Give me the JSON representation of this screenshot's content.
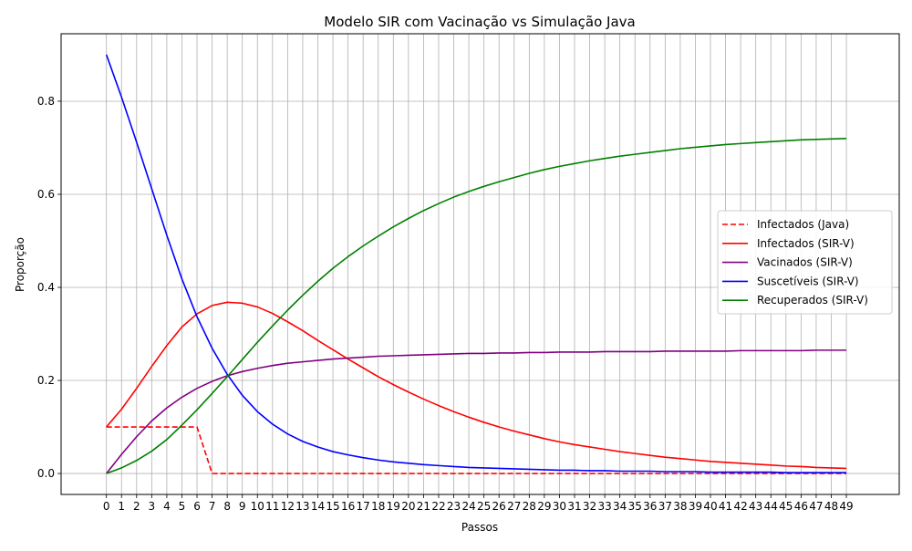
{
  "chart_data": {
    "type": "line",
    "title": "Modelo SIR com Vacinação vs Simulação Java",
    "xlabel": "Passos",
    "ylabel": "Proporção",
    "xlim": [
      -3,
      52.5
    ],
    "ylim": [
      -0.045,
      0.945
    ],
    "x_ticks": [
      0,
      1,
      2,
      3,
      4,
      5,
      6,
      7,
      8,
      9,
      10,
      11,
      12,
      13,
      14,
      15,
      16,
      17,
      18,
      19,
      20,
      21,
      22,
      23,
      24,
      25,
      26,
      27,
      28,
      29,
      30,
      31,
      32,
      33,
      34,
      35,
      36,
      37,
      38,
      39,
      40,
      41,
      42,
      43,
      44,
      45,
      46,
      47,
      48,
      49
    ],
    "y_ticks": [
      0.0,
      0.2,
      0.4,
      0.6,
      0.8
    ],
    "y_tick_labels": [
      "0.0",
      "0.2",
      "0.4",
      "0.6",
      "0.8"
    ],
    "grid": true,
    "legend_position": "center-right",
    "x": [
      0,
      1,
      2,
      3,
      4,
      5,
      6,
      7,
      8,
      9,
      10,
      11,
      12,
      13,
      14,
      15,
      16,
      17,
      18,
      19,
      20,
      21,
      22,
      23,
      24,
      25,
      26,
      27,
      28,
      29,
      30,
      31,
      32,
      33,
      34,
      35,
      36,
      37,
      38,
      39,
      40,
      41,
      42,
      43,
      44,
      45,
      46,
      47,
      48,
      49
    ],
    "series": [
      {
        "name": "Infectados (Java)",
        "color": "#ff0000",
        "dashed": true,
        "values": [
          0.1,
          0.1,
          0.1,
          0.1,
          0.1,
          0.1,
          0.1,
          0,
          0,
          0,
          0,
          0,
          0,
          0,
          0,
          0,
          0,
          0,
          0,
          0,
          0,
          0,
          0,
          0,
          0,
          0,
          0,
          0,
          0,
          0,
          0,
          0,
          0,
          0,
          0,
          0,
          0,
          0,
          0,
          0,
          0,
          0,
          0,
          0,
          0,
          0,
          0,
          0,
          0,
          0
        ]
      },
      {
        "name": "Infectados (SIR-V)",
        "color": "#ff0000",
        "dashed": false,
        "values": [
          0.1,
          0.138,
          0.183,
          0.23,
          0.275,
          0.315,
          0.343,
          0.361,
          0.368,
          0.366,
          0.358,
          0.344,
          0.326,
          0.307,
          0.286,
          0.266,
          0.246,
          0.227,
          0.208,
          0.191,
          0.175,
          0.16,
          0.146,
          0.133,
          0.121,
          0.11,
          0.1,
          0.091,
          0.083,
          0.075,
          0.068,
          0.062,
          0.057,
          0.052,
          0.047,
          0.043,
          0.039,
          0.035,
          0.032,
          0.029,
          0.026,
          0.024,
          0.022,
          0.02,
          0.018,
          0.016,
          0.015,
          0.013,
          0.012,
          0.011
        ]
      },
      {
        "name": "Vacinados (SIR-V)",
        "color": "#800080",
        "dashed": false,
        "values": [
          0,
          0.041,
          0.079,
          0.113,
          0.141,
          0.164,
          0.183,
          0.198,
          0.21,
          0.219,
          0.226,
          0.232,
          0.237,
          0.24,
          0.243,
          0.246,
          0.248,
          0.25,
          0.252,
          0.253,
          0.254,
          0.255,
          0.256,
          0.257,
          0.258,
          0.258,
          0.259,
          0.259,
          0.26,
          0.26,
          0.261,
          0.261,
          0.261,
          0.262,
          0.262,
          0.262,
          0.262,
          0.263,
          0.263,
          0.263,
          0.263,
          0.263,
          0.264,
          0.264,
          0.264,
          0.264,
          0.264,
          0.265,
          0.265,
          0.265
        ]
      },
      {
        "name": "Suscetíveis (SIR-V)",
        "color": "#0000ff",
        "dashed": false,
        "values": [
          0.9,
          0.809,
          0.712,
          0.612,
          0.512,
          0.418,
          0.337,
          0.269,
          0.213,
          0.168,
          0.133,
          0.106,
          0.085,
          0.069,
          0.057,
          0.047,
          0.04,
          0.034,
          0.029,
          0.025,
          0.022,
          0.019,
          0.017,
          0.015,
          0.013,
          0.012,
          0.011,
          0.01,
          0.009,
          0.008,
          0.007,
          0.007,
          0.006,
          0.006,
          0.005,
          0.005,
          0.005,
          0.004,
          0.004,
          0.004,
          0.003,
          0.003,
          0.003,
          0.003,
          0.003,
          0.002,
          0.002,
          0.002,
          0.002,
          0.002
        ]
      },
      {
        "name": "Recuperados (SIR-V)",
        "color": "#008000",
        "dashed": false,
        "values": [
          0,
          0.012,
          0.028,
          0.048,
          0.073,
          0.104,
          0.137,
          0.172,
          0.208,
          0.245,
          0.282,
          0.317,
          0.351,
          0.383,
          0.413,
          0.441,
          0.466,
          0.489,
          0.51,
          0.53,
          0.548,
          0.565,
          0.58,
          0.594,
          0.606,
          0.617,
          0.627,
          0.636,
          0.645,
          0.653,
          0.66,
          0.666,
          0.672,
          0.677,
          0.682,
          0.686,
          0.69,
          0.694,
          0.698,
          0.701,
          0.704,
          0.707,
          0.709,
          0.711,
          0.713,
          0.715,
          0.717,
          0.718,
          0.719,
          0.72
        ]
      }
    ]
  }
}
